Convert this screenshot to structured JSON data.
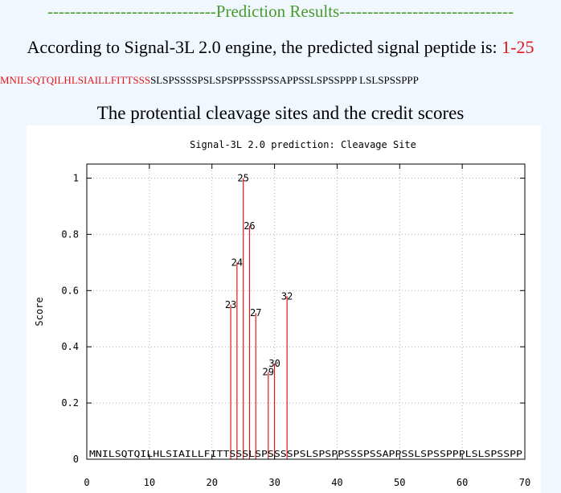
{
  "header": {
    "results_title": "------------------------------Prediction Results-------------------------------"
  },
  "prediction": {
    "text": "According to Signal-3L 2.0 engine, the predicted signal peptide is: ",
    "range": "1-25"
  },
  "sequence": {
    "signal_part": "MNILSQTQILHLSIAILLFITTSSS",
    "rest_part": "SLSPSSSSPSLSPSPPSSSPSSAPPSSLSPSSPPP LSLSPSSPPP"
  },
  "chart_section": {
    "caption": "The protential cleavage sites and the credit scores"
  },
  "colors": {
    "header_green": "#4a9a2a",
    "signal_red": "#e01818",
    "stem_red": "#e01818",
    "grid_gray": "#b0b0b0"
  },
  "chart_data": {
    "type": "bar",
    "title": "Signal-3L 2.0 prediction: Cleavage Site",
    "xlabel": "",
    "ylabel": "Score",
    "xlim": [
      0,
      70
    ],
    "ylim": [
      0,
      1.05
    ],
    "xticks": [
      0,
      10,
      20,
      30,
      40,
      50,
      60,
      70
    ],
    "yticks": [
      0,
      0.2,
      0.4,
      0.6,
      0.8,
      1
    ],
    "grid": true,
    "sequence_axis_text": "MNILSQTQILHLSIAILLFITTSSSLSPSSSSPSLSPSPPSSSPSSAPPSSLSPSSPPPLSLSPSSPP",
    "points": [
      {
        "x": 23,
        "y": 0.55,
        "label": "23"
      },
      {
        "x": 24,
        "y": 0.7,
        "label": "24"
      },
      {
        "x": 25,
        "y": 1.0,
        "label": "25"
      },
      {
        "x": 26,
        "y": 0.83,
        "label": "26"
      },
      {
        "x": 27,
        "y": 0.52,
        "label": "27"
      },
      {
        "x": 29,
        "y": 0.31,
        "label": "29"
      },
      {
        "x": 30,
        "y": 0.34,
        "label": "30"
      },
      {
        "x": 32,
        "y": 0.58,
        "label": "32"
      }
    ]
  }
}
